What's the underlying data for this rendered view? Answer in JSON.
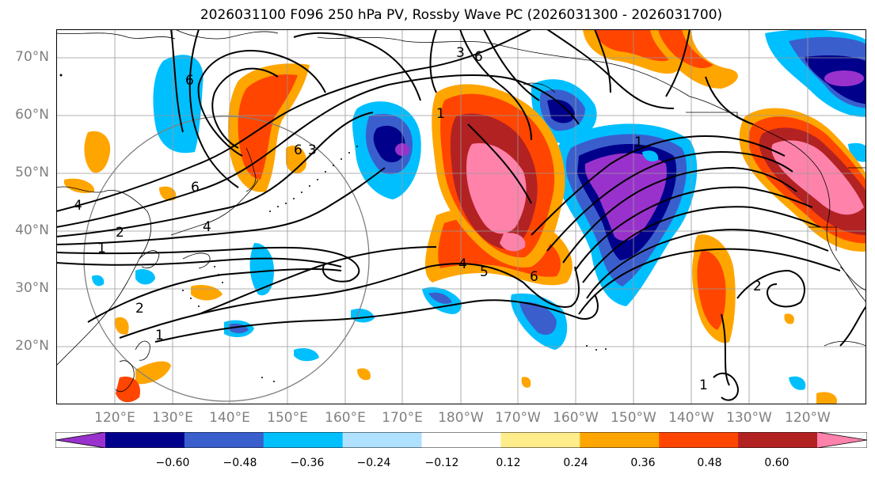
{
  "title": "2026031100 F096 250 hPa PV, Rossby Wave PC (2026031300 - 2026031700)",
  "lat_labels": [
    "70°N",
    "60°N",
    "50°N",
    "40°N",
    "30°N",
    "20°N"
  ],
  "lon_labels": [
    "120°E",
    "130°E",
    "140°E",
    "150°E",
    "160°E",
    "170°E",
    "180°W",
    "170°W",
    "160°W",
    "150°W",
    "140°W",
    "130°W",
    "120°W"
  ],
  "colorbar": {
    "colors": [
      "#9932cc",
      "#00008b",
      "#3a5fcd",
      "#00bfff",
      "#b0e2ff",
      "#ffffff",
      "#ffec8b",
      "#ffa500",
      "#ff4500",
      "#b22222",
      "#ff82ab"
    ],
    "ticks": [
      "−0.60",
      "−0.48",
      "−0.36",
      "−0.24",
      "−0.12",
      "0.12",
      "0.24",
      "0.36",
      "0.48",
      "0.60"
    ]
  },
  "contour_labels": [
    "6",
    "3",
    "6",
    "1",
    "6",
    "3",
    "6",
    "4",
    "1",
    "2",
    "4",
    "2",
    "1",
    "5",
    "4",
    "6",
    "1",
    "2",
    "1"
  ]
}
